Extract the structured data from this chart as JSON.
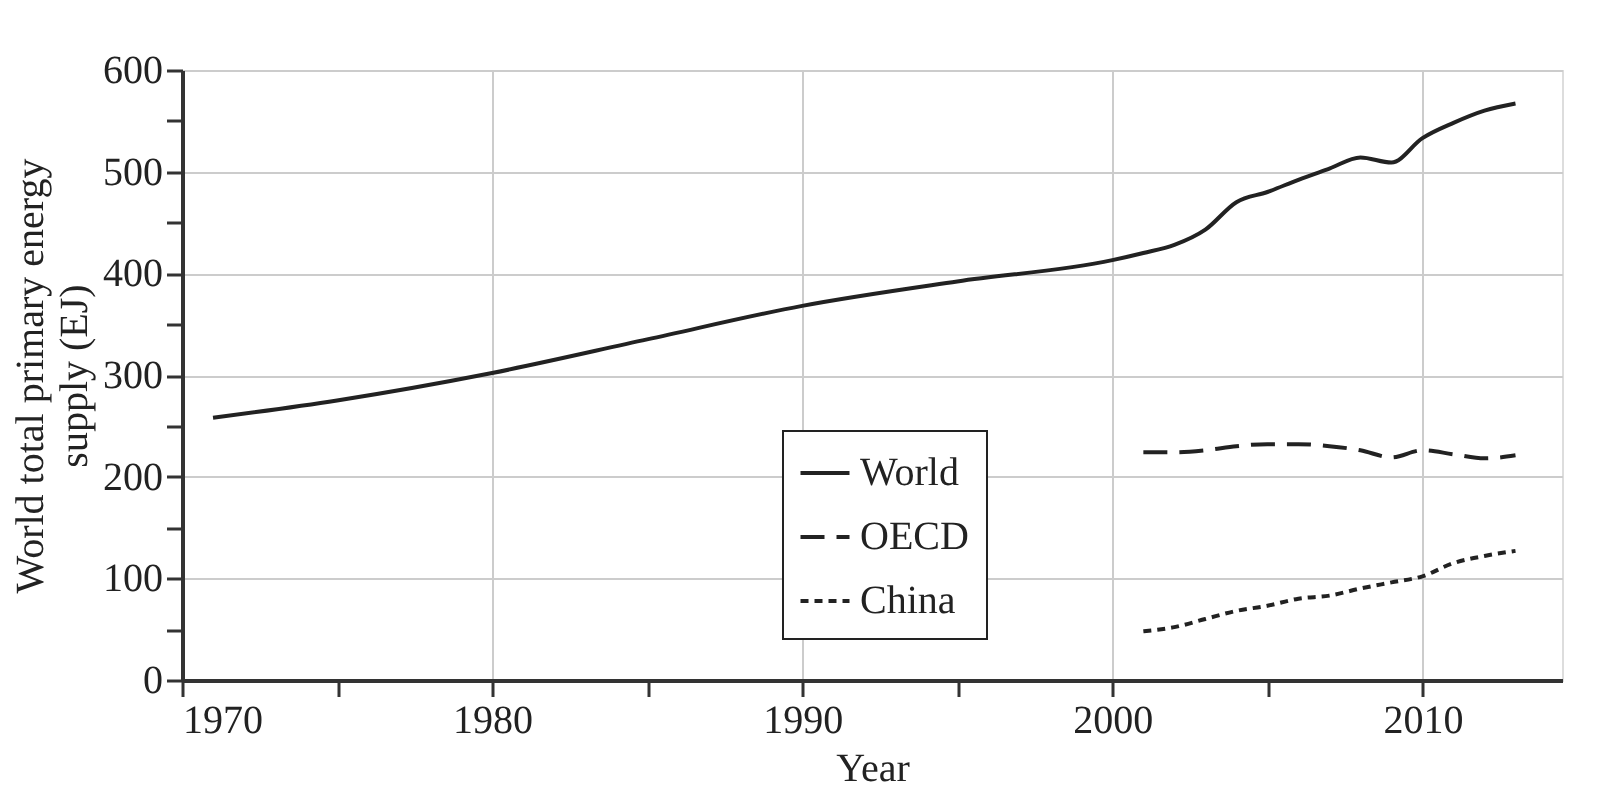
{
  "chart_data": {
    "type": "line",
    "xlabel": "Year",
    "ylabel": "World total primary energy supply (EJ)",
    "xlim": [
      1970,
      2014.5
    ],
    "ylim": [
      0,
      600
    ],
    "xticks": [
      1970,
      {
        "value": 1975,
        "label": null
      },
      1980,
      {
        "value": 1985,
        "label": null
      },
      1990,
      {
        "value": 1995,
        "label": null
      },
      2000,
      {
        "value": 2005,
        "label": null
      },
      2010
    ],
    "yticks": [
      0,
      {
        "value": 50,
        "label": null
      },
      100,
      {
        "value": 150,
        "label": null
      },
      200,
      {
        "value": 250,
        "label": null
      },
      300,
      {
        "value": 350,
        "label": null
      },
      400,
      {
        "value": 450,
        "label": null
      },
      500,
      {
        "value": 550,
        "label": null
      },
      600
    ],
    "grid": true,
    "legend": "bottom",
    "marker": "none",
    "series": [
      {
        "name": "World",
        "color": "#222222",
        "line_style": "solid",
        "x": [
          1971,
          1975,
          1980,
          1985,
          1990,
          1995,
          2000,
          2001,
          2002,
          2003,
          2004,
          2005,
          2006,
          2007,
          2008,
          2009,
          2010,
          2011,
          2012,
          2013
        ],
        "values": [
          258,
          275,
          302,
          335,
          368,
          392,
          413,
          420,
          428,
          443,
          470,
          480,
          492,
          503,
          514,
          509,
          533,
          548,
          560,
          567
        ]
      },
      {
        "name": "OECD",
        "color": "#222222",
        "line_style": "dashed",
        "x": [
          2001,
          2002,
          2003,
          2004,
          2005,
          2006,
          2007,
          2008,
          2009,
          2010,
          2011,
          2012,
          2013
        ],
        "values": [
          224,
          224,
          226,
          230,
          232,
          232,
          230,
          226,
          219,
          226,
          222,
          218,
          221
        ]
      },
      {
        "name": "China",
        "color": "#222222",
        "line_style": "dotted",
        "x": [
          2001,
          2002,
          2003,
          2004,
          2005,
          2006,
          2007,
          2008,
          2009,
          2010,
          2011,
          2012,
          2013
        ],
        "values": [
          48,
          52,
          60,
          68,
          73,
          80,
          83,
          90,
          96,
          102,
          115,
          122,
          127
        ]
      }
    ]
  }
}
